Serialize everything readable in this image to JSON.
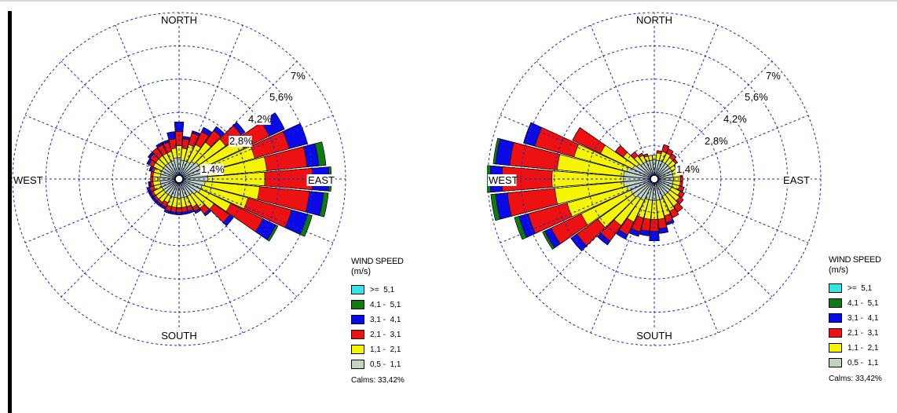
{
  "chart_data": [
    {
      "type": "windrose",
      "compass": {
        "north": "NORTH",
        "south": "SOUTH",
        "east": "EAST",
        "west": "WEST"
      },
      "ring_labels": [
        "1,4%",
        "2,8%",
        "4,2%",
        "5,6%",
        "7%"
      ],
      "ring_values": [
        1.4,
        2.8,
        4.2,
        5.6,
        7.0
      ],
      "legend_title": "WIND SPEED",
      "legend_unit": "(m/s)",
      "speed_classes": [
        {
          "label": ">=  5,1",
          "color": "#33e5e5"
        },
        {
          "label": "4,1 -  5,1",
          "color": "#117a11"
        },
        {
          "label": "3,1 -  4,1",
          "color": "#0a0ae6"
        },
        {
          "label": "2,1 -  3,1",
          "color": "#ee1111"
        },
        {
          "label": "1,1 -  2,1",
          "color": "#f5f500"
        },
        {
          "label": "0,5 -  1,1",
          "color": "#c4d4c4"
        }
      ],
      "calms": "Calms: 33,42%",
      "directions_deg": [
        0,
        10,
        20,
        30,
        40,
        50,
        60,
        70,
        80,
        90,
        100,
        110,
        120,
        130,
        140,
        150,
        160,
        170,
        180,
        190,
        200,
        210,
        220,
        230,
        240,
        250,
        260,
        270,
        280,
        290,
        300,
        310,
        320,
        330,
        340,
        350
      ],
      "cumulative_percent_by_class": {
        "0.5-1.1": [
          0.9,
          0.8,
          0.8,
          0.8,
          0.9,
          1.0,
          1.0,
          1.1,
          1.2,
          1.2,
          1.1,
          1.0,
          1.0,
          0.9,
          0.8,
          0.8,
          0.8,
          0.8,
          0.8,
          0.8,
          0.8,
          0.8,
          0.8,
          0.8,
          0.8,
          0.8,
          0.8,
          0.9,
          0.8,
          0.8,
          0.8,
          0.8,
          0.8,
          0.8,
          0.8,
          0.9
        ],
        "1.1-2.1": [
          1.4,
          1.3,
          1.5,
          1.6,
          1.9,
          2.4,
          3.0,
          3.3,
          3.7,
          3.6,
          3.4,
          3.0,
          2.4,
          1.8,
          1.5,
          1.3,
          1.2,
          1.2,
          1.2,
          1.2,
          1.2,
          1.1,
          1.2,
          1.2,
          1.2,
          1.1,
          1.1,
          1.1,
          1.1,
          1.1,
          1.2,
          1.2,
          1.2,
          1.2,
          1.2,
          1.3
        ],
        "2.1-3.1": [
          2.0,
          1.7,
          2.0,
          2.2,
          2.5,
          3.2,
          4.2,
          4.8,
          5.4,
          5.6,
          5.5,
          4.9,
          3.9,
          2.6,
          1.8,
          1.5,
          1.4,
          1.4,
          1.4,
          1.4,
          1.4,
          1.3,
          1.3,
          1.3,
          1.3,
          1.3,
          1.2,
          1.2,
          1.2,
          1.2,
          1.4,
          1.5,
          1.6,
          1.6,
          1.6,
          1.7
        ],
        "3.1-4.1": [
          2.4,
          1.8,
          2.1,
          2.4,
          2.7,
          3.4,
          4.9,
          5.6,
          5.9,
          6.3,
          6.1,
          5.6,
          4.5,
          2.8,
          1.9,
          1.6,
          1.5,
          1.5,
          1.5,
          1.5,
          1.5,
          1.4,
          1.4,
          1.4,
          1.4,
          1.4,
          1.3,
          1.2,
          1.2,
          1.3,
          1.5,
          1.6,
          1.6,
          1.7,
          1.7,
          2.0
        ],
        "4.1-5.1": [
          2.4,
          1.8,
          2.1,
          2.4,
          2.7,
          3.4,
          4.9,
          5.6,
          6.2,
          6.4,
          6.3,
          5.8,
          4.6,
          2.8,
          1.9,
          1.6,
          1.5,
          1.5,
          1.5,
          1.5,
          1.5,
          1.4,
          1.4,
          1.4,
          1.4,
          1.4,
          1.3,
          1.2,
          1.2,
          1.3,
          1.5,
          1.6,
          1.6,
          1.7,
          1.7,
          2.0
        ],
        ">=5.1": [
          2.4,
          1.8,
          2.1,
          2.4,
          2.7,
          3.4,
          4.9,
          5.6,
          6.2,
          6.4,
          6.3,
          5.8,
          4.6,
          2.8,
          1.9,
          1.6,
          1.5,
          1.5,
          1.5,
          1.5,
          1.5,
          1.4,
          1.4,
          1.4,
          1.4,
          1.4,
          1.3,
          1.2,
          1.2,
          1.3,
          1.5,
          1.6,
          1.6,
          1.7,
          1.7,
          2.0
        ]
      }
    },
    {
      "type": "windrose",
      "compass": {
        "north": "NORTH",
        "south": "SOUTH",
        "east": "EAST",
        "west": "WEST"
      },
      "ring_labels": [
        "1,4%",
        "2,8%",
        "4,2%",
        "5,6%",
        "7%"
      ],
      "ring_values": [
        1.4,
        2.8,
        4.2,
        5.6,
        7.0
      ],
      "legend_title": "WIND SPEED",
      "legend_unit": "(m/s)",
      "speed_classes": [
        {
          "label": ">=  5,1",
          "color": "#33e5e5"
        },
        {
          "label": "4,1 -  5,1",
          "color": "#117a11"
        },
        {
          "label": "3,1 -  4,1",
          "color": "#0a0ae6"
        },
        {
          "label": "2,1 -  3,1",
          "color": "#ee1111"
        },
        {
          "label": "1,1 -  2,1",
          "color": "#f5f500"
        },
        {
          "label": "0,5 -  1,1",
          "color": "#c4d4c4"
        }
      ],
      "calms": "Calms: 33,42%",
      "directions_deg": [
        0,
        10,
        20,
        30,
        40,
        50,
        60,
        70,
        80,
        90,
        100,
        110,
        120,
        130,
        140,
        150,
        160,
        170,
        180,
        190,
        200,
        210,
        220,
        230,
        240,
        250,
        260,
        270,
        280,
        290,
        300,
        310,
        320,
        330,
        340,
        350
      ],
      "cumulative_percent_by_class": {
        "0.5-1.1": [
          0.8,
          0.8,
          0.8,
          0.8,
          0.8,
          0.8,
          0.8,
          0.8,
          0.8,
          0.8,
          0.8,
          0.8,
          0.8,
          0.8,
          0.8,
          0.8,
          0.9,
          0.9,
          0.9,
          0.9,
          0.9,
          1.0,
          1.0,
          1.1,
          1.1,
          1.2,
          1.3,
          1.3,
          1.3,
          1.2,
          1.0,
          0.9,
          0.8,
          0.8,
          0.8,
          0.8
        ],
        "1.1-2.1": [
          1.0,
          1.1,
          1.2,
          1.2,
          1.1,
          1.1,
          1.0,
          1.0,
          1.1,
          1.1,
          1.1,
          1.1,
          1.2,
          1.3,
          1.4,
          1.5,
          1.6,
          1.7,
          1.7,
          1.7,
          1.7,
          2.0,
          2.4,
          2.9,
          3.4,
          3.8,
          4.2,
          4.3,
          4.1,
          3.5,
          2.5,
          1.6,
          1.2,
          1.1,
          1.0,
          1.0
        ],
        "2.1-3.1": [
          1.0,
          1.2,
          1.5,
          1.4,
          1.3,
          1.2,
          1.1,
          1.1,
          1.2,
          1.2,
          1.2,
          1.3,
          1.4,
          1.5,
          1.7,
          1.8,
          1.9,
          2.1,
          2.2,
          2.2,
          2.3,
          2.6,
          3.2,
          4.0,
          4.8,
          5.5,
          6.2,
          6.4,
          6.1,
          5.2,
          3.8,
          2.0,
          1.4,
          1.2,
          1.1,
          1.0
        ],
        "3.1-4.1": [
          1.0,
          1.2,
          1.5,
          1.4,
          1.3,
          1.2,
          1.1,
          1.1,
          1.2,
          1.2,
          1.2,
          1.3,
          1.4,
          1.5,
          1.7,
          1.8,
          2.0,
          2.3,
          2.6,
          2.4,
          2.5,
          2.8,
          3.4,
          4.3,
          5.1,
          5.9,
          6.7,
          6.9,
          6.7,
          5.7,
          3.8,
          2.0,
          1.4,
          1.2,
          1.1,
          1.0
        ],
        "4.1-5.1": [
          1.0,
          1.2,
          1.5,
          1.4,
          1.3,
          1.2,
          1.1,
          1.1,
          1.2,
          1.2,
          1.2,
          1.3,
          1.4,
          1.5,
          1.7,
          1.8,
          2.0,
          2.3,
          2.6,
          2.4,
          2.5,
          2.8,
          3.4,
          4.3,
          5.2,
          6.1,
          6.9,
          7.2,
          6.8,
          5.7,
          3.8,
          2.0,
          1.4,
          1.2,
          1.1,
          1.0
        ],
        ">=5.1": [
          1.0,
          1.2,
          1.5,
          1.4,
          1.3,
          1.2,
          1.1,
          1.1,
          1.2,
          1.2,
          1.2,
          1.3,
          1.4,
          1.5,
          1.7,
          1.8,
          2.0,
          2.3,
          2.6,
          2.4,
          2.5,
          2.8,
          3.4,
          4.3,
          5.2,
          6.1,
          6.9,
          7.2,
          6.8,
          5.7,
          3.8,
          2.0,
          1.4,
          1.2,
          1.1,
          1.0
        ]
      }
    }
  ]
}
